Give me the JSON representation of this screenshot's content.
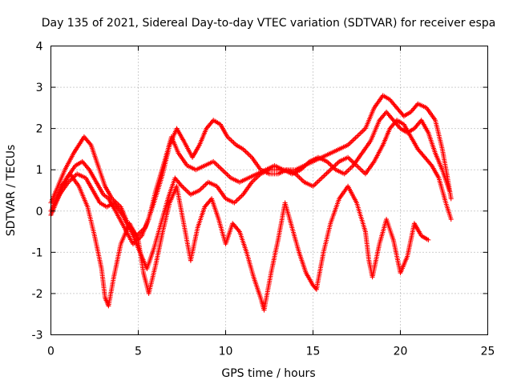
{
  "chart_data": {
    "type": "scatter",
    "title": "Day 135 of 2021, Sidereal Day-to-day VTEC variation (SDTVAR) for receiver espa",
    "xlabel": "GPS time / hours",
    "ylabel": "SDTVAR / TECUs",
    "xlim": [
      0,
      25
    ],
    "ylim": [
      -3,
      4
    ],
    "xticks": [
      "0",
      "5",
      "10",
      "15",
      "20",
      "25"
    ],
    "yticks": [
      "-3",
      "-2",
      "-1",
      "0",
      "1",
      "2",
      "3",
      "4"
    ],
    "grid": true,
    "marker": "plus",
    "color": "#ff0000",
    "series": [
      {
        "name": "trace-1",
        "x": [
          0,
          0.3,
          0.8,
          1.3,
          1.9,
          2.3,
          2.7,
          3.1,
          3.5,
          4.0,
          4.4,
          4.9,
          5.4,
          5.9,
          6.4,
          6.8,
          7.2,
          7.6,
          8.1,
          8.5,
          8.9,
          9.3,
          9.7,
          10.1,
          10.6,
          11.0,
          11.5,
          12.0,
          12.5,
          13.0,
          13.5,
          14.0,
          14.5,
          15.0,
          15.5,
          16.0,
          16.5,
          17.0,
          17.5,
          18.0,
          18.5,
          19.0,
          19.4,
          19.8,
          20.2,
          20.6,
          21.0,
          21.5,
          22.0,
          22.4,
          22.7,
          22.9
        ],
        "y": [
          0.2,
          0.5,
          1.0,
          1.4,
          1.8,
          1.6,
          1.1,
          0.6,
          0.3,
          0.1,
          -0.3,
          -0.6,
          -0.4,
          0.2,
          0.9,
          1.6,
          2.0,
          1.7,
          1.3,
          1.6,
          2.0,
          2.2,
          2.1,
          1.8,
          1.6,
          1.5,
          1.3,
          1.0,
          0.9,
          0.9,
          1.0,
          1.0,
          1.1,
          1.2,
          1.3,
          1.4,
          1.5,
          1.6,
          1.8,
          2.0,
          2.5,
          2.8,
          2.7,
          2.5,
          2.3,
          2.4,
          2.6,
          2.5,
          2.2,
          1.5,
          0.8,
          0.3
        ]
      },
      {
        "name": "trace-2",
        "x": [
          0,
          0.4,
          0.9,
          1.4,
          1.8,
          2.2,
          2.6,
          3.0,
          3.3,
          3.7,
          4.2,
          4.7,
          5.2,
          5.6,
          6.0,
          6.5,
          6.9,
          7.3,
          7.8,
          8.3,
          8.8,
          9.3,
          9.8,
          10.3,
          10.8,
          11.3,
          11.8,
          12.3,
          12.8,
          13.3,
          13.8,
          14.3,
          14.8,
          15.3,
          15.8,
          16.3,
          16.8,
          17.3,
          17.8,
          18.3,
          18.8,
          19.2,
          19.6,
          20.0,
          20.4,
          20.8,
          21.2,
          21.6,
          22.0,
          22.4,
          22.8
        ],
        "y": [
          -0.1,
          0.3,
          0.8,
          1.1,
          1.2,
          1.0,
          0.7,
          0.4,
          0.3,
          0.0,
          -0.4,
          -0.8,
          -0.6,
          -0.2,
          0.5,
          1.2,
          1.8,
          1.4,
          1.1,
          1.0,
          1.1,
          1.2,
          1.0,
          0.8,
          0.7,
          0.8,
          0.9,
          1.0,
          1.1,
          1.0,
          0.9,
          1.0,
          1.2,
          1.3,
          1.2,
          1.0,
          0.9,
          1.1,
          1.4,
          1.7,
          2.2,
          2.4,
          2.2,
          2.0,
          1.9,
          2.0,
          2.2,
          1.9,
          1.4,
          1.0,
          0.5
        ]
      },
      {
        "name": "trace-3",
        "x": [
          0,
          0.5,
          1.0,
          1.5,
          2.0,
          2.4,
          2.8,
          3.2,
          3.6,
          4.1,
          4.6,
          5.1,
          5.5,
          5.9,
          6.3,
          6.7,
          7.1,
          7.5,
          8.0,
          8.5,
          9.0,
          9.5,
          10.0,
          10.5,
          11.0,
          11.5,
          12.0,
          12.5,
          13.0,
          13.5,
          14.0,
          14.5,
          15.0,
          15.5,
          16.0,
          16.5,
          17.0,
          17.5,
          18.0,
          18.5,
          19.0,
          19.4,
          19.8,
          20.2,
          20.6,
          21.0,
          21.4,
          21.8,
          22.2,
          22.6,
          22.9
        ],
        "y": [
          0.0,
          0.4,
          0.7,
          0.9,
          0.8,
          0.5,
          0.2,
          0.1,
          0.2,
          -0.1,
          -0.5,
          -1.0,
          -1.4,
          -0.9,
          -0.3,
          0.3,
          0.8,
          0.6,
          0.4,
          0.5,
          0.7,
          0.6,
          0.3,
          0.2,
          0.4,
          0.7,
          0.9,
          1.0,
          1.0,
          1.0,
          0.9,
          0.7,
          0.6,
          0.8,
          1.0,
          1.2,
          1.3,
          1.1,
          0.9,
          1.2,
          1.6,
          2.0,
          2.2,
          2.1,
          1.8,
          1.5,
          1.3,
          1.1,
          0.8,
          0.2,
          -0.2
        ]
      },
      {
        "name": "trace-4",
        "x": [
          0.1,
          0.6,
          1.1,
          1.6,
          2.1,
          2.5,
          2.9,
          3.1,
          3.3,
          3.6,
          4.0,
          4.5,
          5.0,
          5.3,
          5.6,
          6.0,
          6.4,
          6.8,
          7.2,
          7.6,
          8.0,
          8.4,
          8.8,
          9.2,
          9.6,
          10.0,
          10.4,
          10.8,
          11.2,
          11.6,
          12.0,
          12.2,
          12.6,
          13.0,
          13.4,
          13.8,
          14.2,
          14.6,
          15.0,
          15.2,
          15.6,
          16.0,
          16.5,
          17.0,
          17.5,
          18.0,
          18.2,
          18.4,
          18.8,
          19.2,
          19.6,
          20.0,
          20.4,
          20.8,
          21.2,
          21.6
        ],
        "y": [
          0.1,
          0.6,
          0.9,
          0.6,
          0.1,
          -0.6,
          -1.4,
          -2.1,
          -2.3,
          -1.6,
          -0.8,
          -0.3,
          -0.7,
          -1.5,
          -2.0,
          -1.3,
          -0.5,
          0.2,
          0.6,
          -0.3,
          -1.2,
          -0.4,
          0.1,
          0.3,
          -0.2,
          -0.8,
          -0.3,
          -0.5,
          -1.0,
          -1.6,
          -2.1,
          -2.4,
          -1.5,
          -0.7,
          0.2,
          -0.4,
          -1.0,
          -1.5,
          -1.8,
          -1.9,
          -1.0,
          -0.3,
          0.3,
          0.6,
          0.2,
          -0.5,
          -1.2,
          -1.6,
          -0.8,
          -0.2,
          -0.7,
          -1.5,
          -1.1,
          -0.3,
          -0.6,
          -0.7
        ]
      }
    ]
  }
}
